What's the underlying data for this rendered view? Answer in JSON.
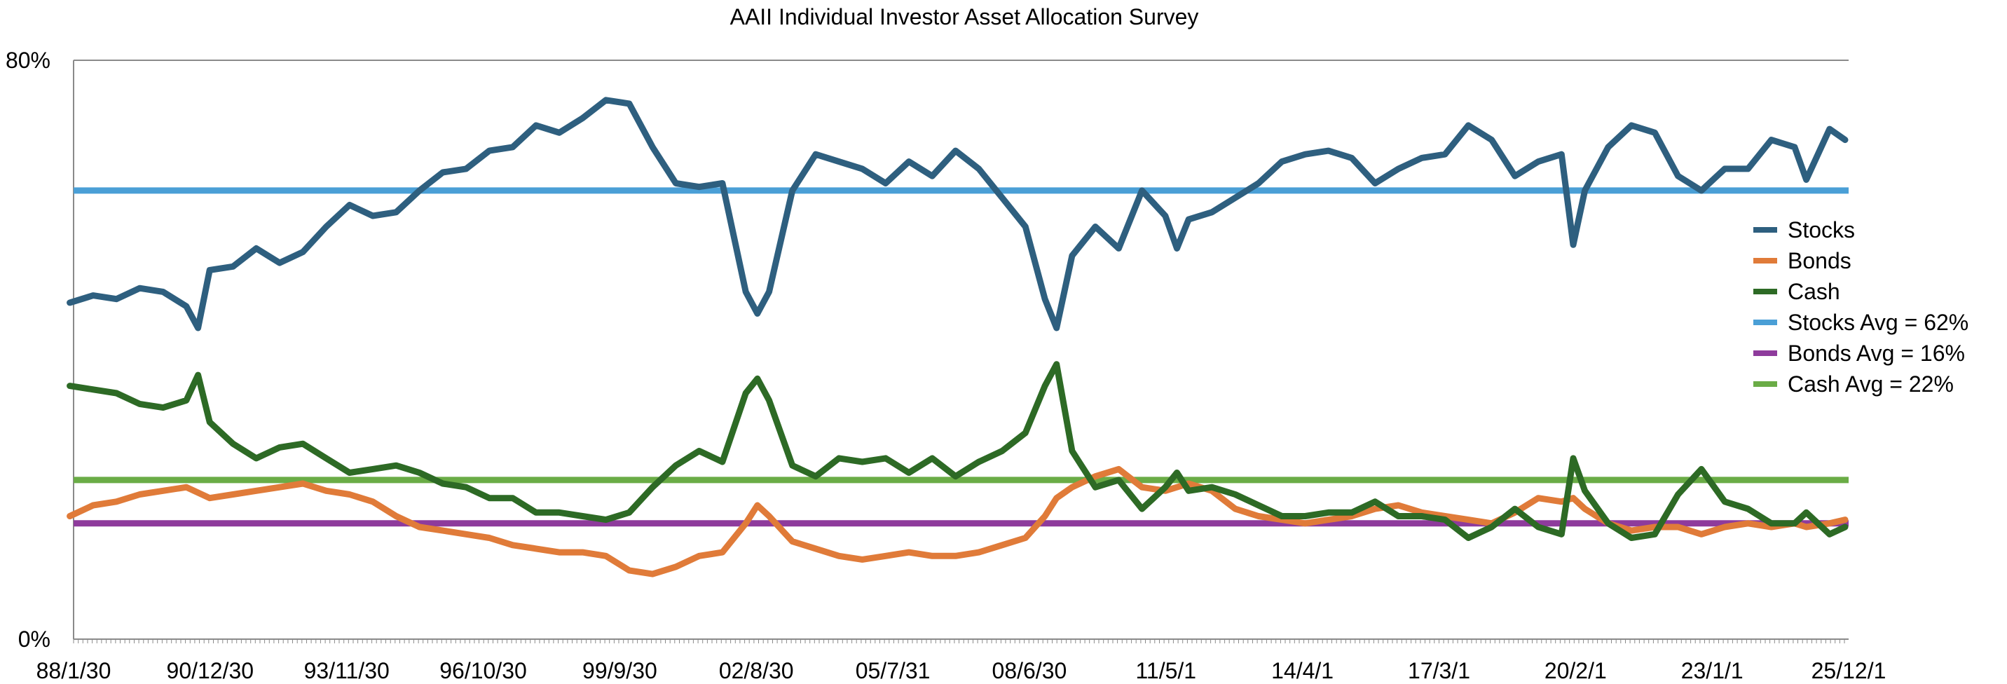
{
  "chart_data": {
    "type": "line",
    "title": "AAII Individual Investor Asset Allocation Survey",
    "xlabel": "",
    "ylabel": "",
    "x_tick_labels": [
      "88/1/30",
      "90/12/30",
      "93/11/30",
      "96/10/30",
      "99/9/30",
      "02/8/30",
      "05/7/31",
      "08/6/30",
      "11/5/1",
      "14/4/1",
      "17/3/1",
      "20/2/1",
      "23/1/1",
      "25/12/1"
    ],
    "x_range": [
      "1988-01-30",
      "2026-02-28"
    ],
    "y_tick_labels": [
      "80%",
      "0%"
    ],
    "ylim": [
      0,
      80
    ],
    "grid": false,
    "legend_position": "right",
    "series": [
      {
        "name": "Stocks",
        "color": "#2e5f7f",
        "points": [
          [
            "1988-01",
            46.5
          ],
          [
            "1988-07",
            47.5
          ],
          [
            "1989-01",
            47.0
          ],
          [
            "1989-07",
            48.5
          ],
          [
            "1990-01",
            48.0
          ],
          [
            "1990-07",
            46.0
          ],
          [
            "1990-10",
            43.0
          ],
          [
            "1991-01",
            51.0
          ],
          [
            "1991-07",
            51.5
          ],
          [
            "1992-01",
            54.0
          ],
          [
            "1992-07",
            52.0
          ],
          [
            "1993-01",
            53.5
          ],
          [
            "1993-07",
            57.0
          ],
          [
            "1994-01",
            60.0
          ],
          [
            "1994-07",
            58.5
          ],
          [
            "1995-01",
            59.0
          ],
          [
            "1995-07",
            62.0
          ],
          [
            "1996-01",
            64.5
          ],
          [
            "1996-07",
            65.0
          ],
          [
            "1997-01",
            67.5
          ],
          [
            "1997-07",
            68.0
          ],
          [
            "1998-01",
            71.0
          ],
          [
            "1998-07",
            70.0
          ],
          [
            "1999-01",
            72.0
          ],
          [
            "1999-07",
            74.5
          ],
          [
            "2000-01",
            74.0
          ],
          [
            "2000-07",
            68.0
          ],
          [
            "2001-01",
            63.0
          ],
          [
            "2001-07",
            62.5
          ],
          [
            "2002-01",
            63.0
          ],
          [
            "2002-07",
            48.0
          ],
          [
            "2002-10",
            45.0
          ],
          [
            "2003-01",
            48.0
          ],
          [
            "2003-07",
            62.0
          ],
          [
            "2004-01",
            67.0
          ],
          [
            "2004-07",
            66.0
          ],
          [
            "2005-01",
            65.0
          ],
          [
            "2005-07",
            63.0
          ],
          [
            "2006-01",
            66.0
          ],
          [
            "2006-07",
            64.0
          ],
          [
            "2007-01",
            67.5
          ],
          [
            "2007-07",
            65.0
          ],
          [
            "2008-01",
            61.0
          ],
          [
            "2008-07",
            57.0
          ],
          [
            "2008-12",
            47.0
          ],
          [
            "2009-03",
            43.0
          ],
          [
            "2009-07",
            53.0
          ],
          [
            "2010-01",
            57.0
          ],
          [
            "2010-07",
            54.0
          ],
          [
            "2011-01",
            62.0
          ],
          [
            "2011-07",
            58.5
          ],
          [
            "2011-10",
            54.0
          ],
          [
            "2012-01",
            58.0
          ],
          [
            "2012-07",
            59.0
          ],
          [
            "2013-01",
            61.0
          ],
          [
            "2013-07",
            63.0
          ],
          [
            "2014-01",
            66.0
          ],
          [
            "2014-07",
            67.0
          ],
          [
            "2015-01",
            67.5
          ],
          [
            "2015-07",
            66.5
          ],
          [
            "2016-01",
            63.0
          ],
          [
            "2016-07",
            65.0
          ],
          [
            "2017-01",
            66.5
          ],
          [
            "2017-07",
            67.0
          ],
          [
            "2018-01",
            71.0
          ],
          [
            "2018-07",
            69.0
          ],
          [
            "2019-01",
            64.0
          ],
          [
            "2019-07",
            66.0
          ],
          [
            "2020-01",
            67.0
          ],
          [
            "2020-04",
            54.5
          ],
          [
            "2020-07",
            62.0
          ],
          [
            "2021-01",
            68.0
          ],
          [
            "2021-07",
            71.0
          ],
          [
            "2022-01",
            70.0
          ],
          [
            "2022-07",
            64.0
          ],
          [
            "2023-01",
            62.0
          ],
          [
            "2023-07",
            65.0
          ],
          [
            "2024-01",
            65.0
          ],
          [
            "2024-07",
            69.0
          ],
          [
            "2025-01",
            68.0
          ],
          [
            "2025-04",
            63.5
          ],
          [
            "2025-10",
            70.5
          ],
          [
            "2026-02",
            69.0
          ]
        ]
      },
      {
        "name": "Bonds",
        "color": "#e07b39",
        "points": [
          [
            "1988-01",
            17.0
          ],
          [
            "1988-07",
            18.5
          ],
          [
            "1989-01",
            19.0
          ],
          [
            "1989-07",
            20.0
          ],
          [
            "1990-01",
            20.5
          ],
          [
            "1990-07",
            21.0
          ],
          [
            "1991-01",
            19.5
          ],
          [
            "1991-07",
            20.0
          ],
          [
            "1992-01",
            20.5
          ],
          [
            "1992-07",
            21.0
          ],
          [
            "1993-01",
            21.5
          ],
          [
            "1993-07",
            20.5
          ],
          [
            "1994-01",
            20.0
          ],
          [
            "1994-07",
            19.0
          ],
          [
            "1995-01",
            17.0
          ],
          [
            "1995-07",
            15.5
          ],
          [
            "1996-01",
            15.0
          ],
          [
            "1996-07",
            14.5
          ],
          [
            "1997-01",
            14.0
          ],
          [
            "1997-07",
            13.0
          ],
          [
            "1998-01",
            12.5
          ],
          [
            "1998-07",
            12.0
          ],
          [
            "1999-01",
            12.0
          ],
          [
            "1999-07",
            11.5
          ],
          [
            "2000-01",
            9.5
          ],
          [
            "2000-07",
            9.0
          ],
          [
            "2001-01",
            10.0
          ],
          [
            "2001-07",
            11.5
          ],
          [
            "2002-01",
            12.0
          ],
          [
            "2002-07",
            16.0
          ],
          [
            "2002-10",
            18.5
          ],
          [
            "2003-01",
            17.0
          ],
          [
            "2003-07",
            13.5
          ],
          [
            "2004-01",
            12.5
          ],
          [
            "2004-07",
            11.5
          ],
          [
            "2005-01",
            11.0
          ],
          [
            "2005-07",
            11.5
          ],
          [
            "2006-01",
            12.0
          ],
          [
            "2006-07",
            11.5
          ],
          [
            "2007-01",
            11.5
          ],
          [
            "2007-07",
            12.0
          ],
          [
            "2008-01",
            13.0
          ],
          [
            "2008-07",
            14.0
          ],
          [
            "2008-12",
            17.0
          ],
          [
            "2009-03",
            19.5
          ],
          [
            "2009-07",
            21.0
          ],
          [
            "2010-01",
            22.5
          ],
          [
            "2010-07",
            23.5
          ],
          [
            "2011-01",
            21.0
          ],
          [
            "2011-07",
            20.5
          ],
          [
            "2012-01",
            21.5
          ],
          [
            "2012-07",
            20.5
          ],
          [
            "2013-01",
            18.0
          ],
          [
            "2013-07",
            17.0
          ],
          [
            "2014-01",
            16.5
          ],
          [
            "2014-07",
            16.0
          ],
          [
            "2015-01",
            16.5
          ],
          [
            "2015-07",
            17.0
          ],
          [
            "2016-01",
            18.0
          ],
          [
            "2016-07",
            18.5
          ],
          [
            "2017-01",
            17.5
          ],
          [
            "2017-07",
            17.0
          ],
          [
            "2018-01",
            16.5
          ],
          [
            "2018-07",
            16.0
          ],
          [
            "2019-01",
            17.5
          ],
          [
            "2019-07",
            19.5
          ],
          [
            "2020-01",
            19.0
          ],
          [
            "2020-04",
            19.5
          ],
          [
            "2020-07",
            18.0
          ],
          [
            "2021-01",
            16.0
          ],
          [
            "2021-07",
            15.0
          ],
          [
            "2022-01",
            15.5
          ],
          [
            "2022-07",
            15.5
          ],
          [
            "2023-01",
            14.5
          ],
          [
            "2023-07",
            15.5
          ],
          [
            "2024-01",
            16.0
          ],
          [
            "2024-07",
            15.5
          ],
          [
            "2025-01",
            16.0
          ],
          [
            "2025-04",
            15.5
          ],
          [
            "2025-10",
            16.0
          ],
          [
            "2026-02",
            16.5
          ]
        ]
      },
      {
        "name": "Cash",
        "color": "#2d6a25",
        "points": [
          [
            "1988-01",
            35.0
          ],
          [
            "1988-07",
            34.5
          ],
          [
            "1989-01",
            34.0
          ],
          [
            "1989-07",
            32.5
          ],
          [
            "1990-01",
            32.0
          ],
          [
            "1990-07",
            33.0
          ],
          [
            "1990-10",
            36.5
          ],
          [
            "1991-01",
            30.0
          ],
          [
            "1991-07",
            27.0
          ],
          [
            "1992-01",
            25.0
          ],
          [
            "1992-07",
            26.5
          ],
          [
            "1993-01",
            27.0
          ],
          [
            "1993-07",
            25.0
          ],
          [
            "1994-01",
            23.0
          ],
          [
            "1994-07",
            23.5
          ],
          [
            "1995-01",
            24.0
          ],
          [
            "1995-07",
            23.0
          ],
          [
            "1996-01",
            21.5
          ],
          [
            "1996-07",
            21.0
          ],
          [
            "1997-01",
            19.5
          ],
          [
            "1997-07",
            19.5
          ],
          [
            "1998-01",
            17.5
          ],
          [
            "1998-07",
            17.5
          ],
          [
            "1999-01",
            17.0
          ],
          [
            "1999-07",
            16.5
          ],
          [
            "2000-01",
            17.5
          ],
          [
            "2000-07",
            21.0
          ],
          [
            "2001-01",
            24.0
          ],
          [
            "2001-07",
            26.0
          ],
          [
            "2002-01",
            24.5
          ],
          [
            "2002-07",
            34.0
          ],
          [
            "2002-10",
            36.0
          ],
          [
            "2003-01",
            33.0
          ],
          [
            "2003-07",
            24.0
          ],
          [
            "2004-01",
            22.5
          ],
          [
            "2004-07",
            25.0
          ],
          [
            "2005-01",
            24.5
          ],
          [
            "2005-07",
            25.0
          ],
          [
            "2006-01",
            23.0
          ],
          [
            "2006-07",
            25.0
          ],
          [
            "2007-01",
            22.5
          ],
          [
            "2007-07",
            24.5
          ],
          [
            "2008-01",
            26.0
          ],
          [
            "2008-07",
            28.5
          ],
          [
            "2008-12",
            35.0
          ],
          [
            "2009-03",
            38.0
          ],
          [
            "2009-07",
            26.0
          ],
          [
            "2010-01",
            21.0
          ],
          [
            "2010-07",
            22.0
          ],
          [
            "2011-01",
            18.0
          ],
          [
            "2011-07",
            21.0
          ],
          [
            "2011-10",
            23.0
          ],
          [
            "2012-01",
            20.5
          ],
          [
            "2012-07",
            21.0
          ],
          [
            "2013-01",
            20.0
          ],
          [
            "2013-07",
            18.5
          ],
          [
            "2014-01",
            17.0
          ],
          [
            "2014-07",
            17.0
          ],
          [
            "2015-01",
            17.5
          ],
          [
            "2015-07",
            17.5
          ],
          [
            "2016-01",
            19.0
          ],
          [
            "2016-07",
            17.0
          ],
          [
            "2017-01",
            17.0
          ],
          [
            "2017-07",
            16.5
          ],
          [
            "2018-01",
            14.0
          ],
          [
            "2018-07",
            15.5
          ],
          [
            "2019-01",
            18.0
          ],
          [
            "2019-07",
            15.5
          ],
          [
            "2020-01",
            14.5
          ],
          [
            "2020-04",
            25.0
          ],
          [
            "2020-07",
            20.5
          ],
          [
            "2021-01",
            16.0
          ],
          [
            "2021-07",
            14.0
          ],
          [
            "2022-01",
            14.5
          ],
          [
            "2022-07",
            20.0
          ],
          [
            "2023-01",
            23.5
          ],
          [
            "2023-07",
            19.0
          ],
          [
            "2024-01",
            18.0
          ],
          [
            "2024-07",
            16.0
          ],
          [
            "2025-01",
            16.0
          ],
          [
            "2025-04",
            17.5
          ],
          [
            "2025-10",
            14.5
          ],
          [
            "2026-02",
            15.5
          ]
        ]
      },
      {
        "name": "Stocks Avg = 62%",
        "color": "#4a9fd6",
        "constant": 62
      },
      {
        "name": "Bonds Avg = 16%",
        "color": "#8e3b9c",
        "constant": 16
      },
      {
        "name": "Cash Avg = 22%",
        "color": "#6aac46",
        "constant": 22
      }
    ]
  }
}
